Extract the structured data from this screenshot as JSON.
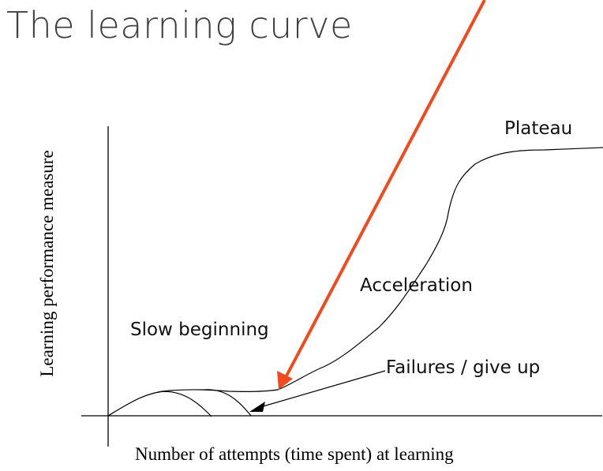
{
  "slide": {
    "title": "The learning curve"
  },
  "diagram": {
    "y_axis_label": "Learning performance measure",
    "x_axis_label": "Number of attempts (time spent)  at learning",
    "labels": {
      "slow_beginning": "Slow beginning",
      "acceleration": "Acceleration",
      "plateau": "Plateau",
      "failures": "Failures / give up"
    },
    "colors": {
      "curve": "#000000",
      "axes": "#000000",
      "highlight_arrow": "#f04a1e",
      "title": "#404040"
    }
  }
}
